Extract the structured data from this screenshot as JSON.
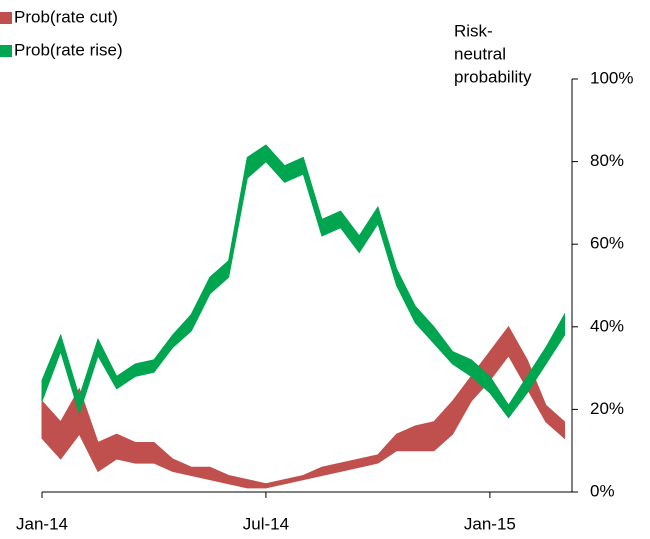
{
  "chart_data": {
    "type": "band",
    "ylabel": [
      "Risk-",
      "neutral",
      "probability"
    ],
    "x": [
      0,
      0.5,
      1,
      1.5,
      2,
      2.5,
      3,
      3.5,
      4,
      4.5,
      5,
      5.5,
      6,
      6.5,
      7,
      7.5,
      8,
      8.5,
      9,
      9.5,
      10,
      10.5,
      11,
      11.5,
      12,
      12.5,
      13,
      13.5,
      14
    ],
    "series": [
      {
        "name": "Prob(rate cut)",
        "color": "#c0504d",
        "low": [
          13,
          8,
          14,
          5,
          8,
          7,
          7,
          5,
          4,
          3,
          2,
          1,
          1,
          2,
          3,
          4,
          5,
          6,
          7,
          10,
          10,
          10,
          14,
          22,
          27,
          33,
          25,
          17,
          13
        ],
        "high": [
          22,
          17,
          25,
          12,
          14,
          12,
          12,
          8,
          6,
          6,
          4,
          3,
          2,
          3,
          4,
          6,
          7,
          8,
          9,
          14,
          16,
          17,
          22,
          28,
          34,
          40,
          32,
          21,
          17
        ]
      },
      {
        "name": "Prob(rate rise)",
        "color": "#00a550",
        "low": [
          22,
          34,
          19,
          33,
          25,
          28,
          29,
          35,
          39,
          48,
          52,
          76,
          80,
          75,
          77,
          62,
          64,
          58,
          65,
          50,
          41,
          36,
          31,
          28,
          24,
          18,
          24,
          31,
          38
        ],
        "high": [
          27,
          38,
          23,
          37,
          28,
          31,
          32,
          38,
          43,
          52,
          56,
          81,
          84,
          79,
          81,
          66,
          68,
          62,
          69,
          54,
          45,
          40,
          34,
          32,
          28,
          21,
          28,
          35,
          43
        ]
      }
    ],
    "xlim": [
      0,
      14.2
    ],
    "xticks": [
      {
        "value": 0,
        "label": "Jan-14"
      },
      {
        "value": 6,
        "label": "Jul-14"
      },
      {
        "value": 12,
        "label": "Jan-15"
      }
    ],
    "ylim": [
      0,
      100
    ],
    "yticks": [
      {
        "value": 0,
        "label": "0%"
      },
      {
        "value": 20,
        "label": "20%"
      },
      {
        "value": 40,
        "label": "40%"
      },
      {
        "value": 60,
        "label": "60%"
      },
      {
        "value": 80,
        "label": "80%"
      },
      {
        "value": 100,
        "label": "100%"
      }
    ]
  }
}
